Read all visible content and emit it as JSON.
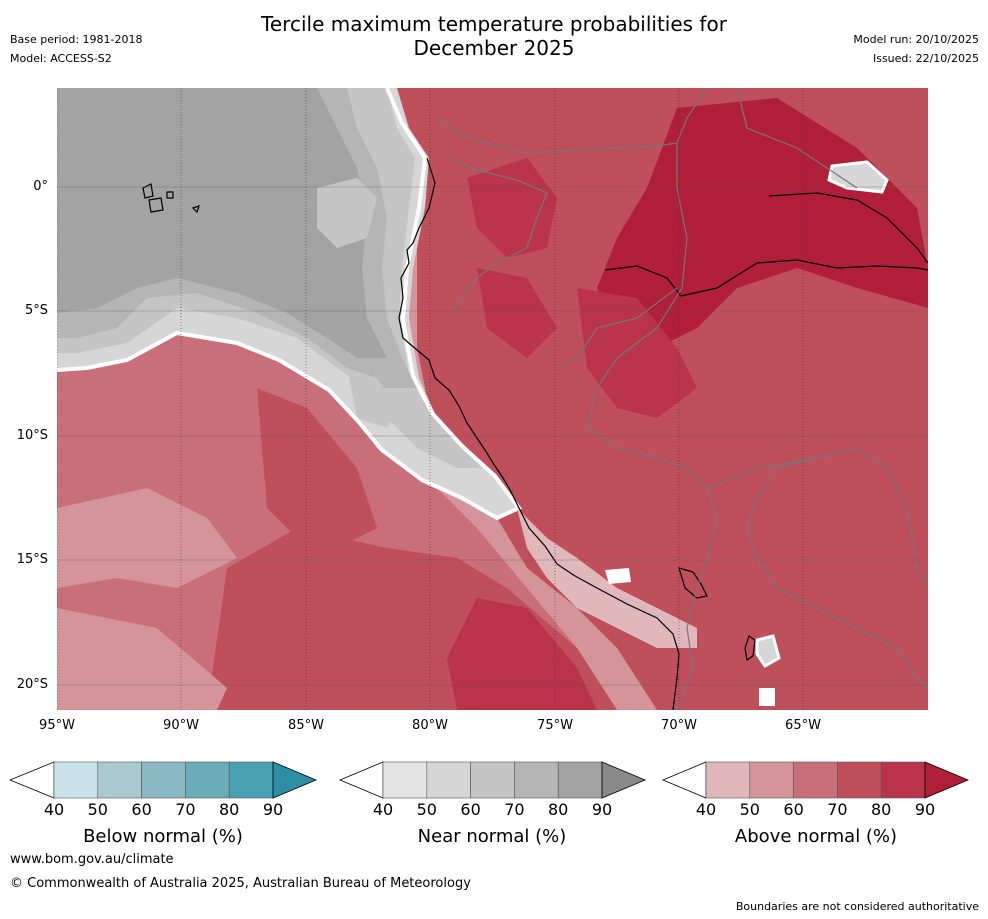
{
  "title_line1": "Tercile maximum temperature probabilities for",
  "title_line2": "December 2025",
  "base_period": "Base period: 1981-2018",
  "model": "Model: ACCESS-S2",
  "model_run": "Model run: 20/10/2025",
  "issued": "Issued: 22/10/2025",
  "lat_labels": [
    "0°",
    "5°S",
    "10°S",
    "15°S",
    "20°S"
  ],
  "lon_labels": [
    "95°W",
    "90°W",
    "85°W",
    "80°W",
    "75°W",
    "70°W",
    "65°W"
  ],
  "colorbars": [
    {
      "title": "Below normal (%)",
      "ticks": [
        "40",
        "50",
        "60",
        "70",
        "80",
        "90"
      ],
      "colors": [
        "#c9e2e7",
        "#a8c9cf",
        "#8ab9c4",
        "#6aacb8",
        "#4aa1b2",
        "#2e8ea4"
      ]
    },
    {
      "title": "Near normal (%)",
      "ticks": [
        "40",
        "50",
        "60",
        "70",
        "80",
        "90"
      ],
      "colors": [
        "#e4e4e4",
        "#d6d6d6",
        "#c5c5c5",
        "#b5b5b5",
        "#a3a3a3",
        "#898989"
      ]
    },
    {
      "title": "Above normal (%)",
      "ticks": [
        "40",
        "50",
        "60",
        "70",
        "80",
        "90"
      ],
      "colors": [
        "#e0b8bc",
        "#d49499",
        "#c96f79",
        "#c04f5c",
        "#b9334a",
        "#b01e3a"
      ]
    }
  ],
  "footer_url": "www.bom.gov.au/climate",
  "footer_copyright": "© Commonwealth of Australia 2025, Australian Bureau of Meteorology",
  "disclaimer": "Boundaries are not considered authoritative"
}
